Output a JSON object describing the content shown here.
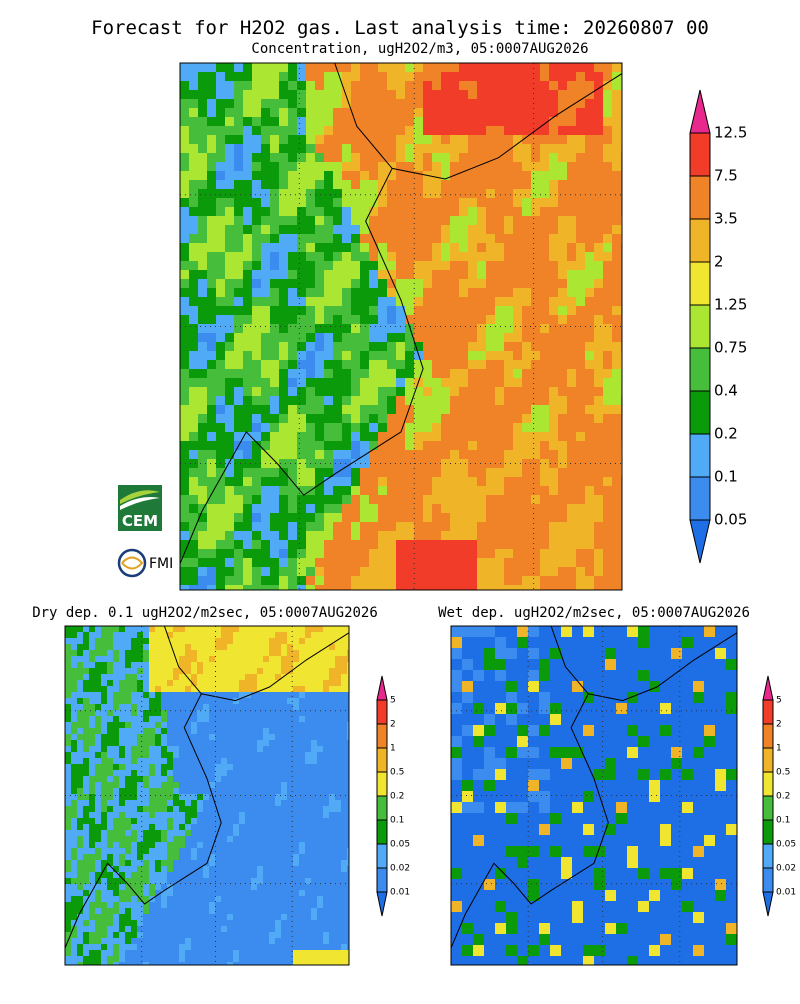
{
  "header": {
    "title": "Forecast for H2O2 gas. Last analysis time: 20260807 00",
    "subtitle": "Concentration, ugH2O2/m3, 05:0007AUG2026"
  },
  "main_map": {
    "colorbar": {
      "labels": [
        "12.5",
        "7.5",
        "3.5",
        "2",
        "1.25",
        "0.75",
        "0.4",
        "0.2",
        "0.1",
        "0.05"
      ],
      "colors": [
        "#e8288c",
        "#f03c28",
        "#f08228",
        "#f0b428",
        "#f0e632",
        "#aae632",
        "#46be3c",
        "#0a9a0a",
        "#50aaf5",
        "#3c8cf0",
        "#1e6ee6"
      ]
    }
  },
  "panels": [
    {
      "title": "Dry dep. 0.1 ugH2O2/m2sec, 05:0007AUG2026",
      "colorbar": {
        "labels": [
          "5",
          "2",
          "1",
          "0.5",
          "0.2",
          "0.1",
          "0.05",
          "0.02",
          "0.01"
        ],
        "colors": [
          "#e8288c",
          "#f03c28",
          "#f08228",
          "#f0b428",
          "#f0e632",
          "#46be3c",
          "#0a9a0a",
          "#50aaf5",
          "#3c8cf0",
          "#1e6ee6"
        ]
      }
    },
    {
      "title": "Wet dep. ugH2O2/m2sec, 05:0007AUG2026",
      "colorbar": {
        "labels": [
          "5",
          "2",
          "1",
          "0.5",
          "0.2",
          "0.1",
          "0.05",
          "0.02",
          "0.01"
        ],
        "colors": [
          "#e8288c",
          "#f03c28",
          "#f08228",
          "#f0b428",
          "#f0e632",
          "#46be3c",
          "#0a9a0a",
          "#50aaf5",
          "#3c8cf0",
          "#1e6ee6"
        ]
      }
    }
  ],
  "logos": [
    "CEM",
    "FMI"
  ]
}
